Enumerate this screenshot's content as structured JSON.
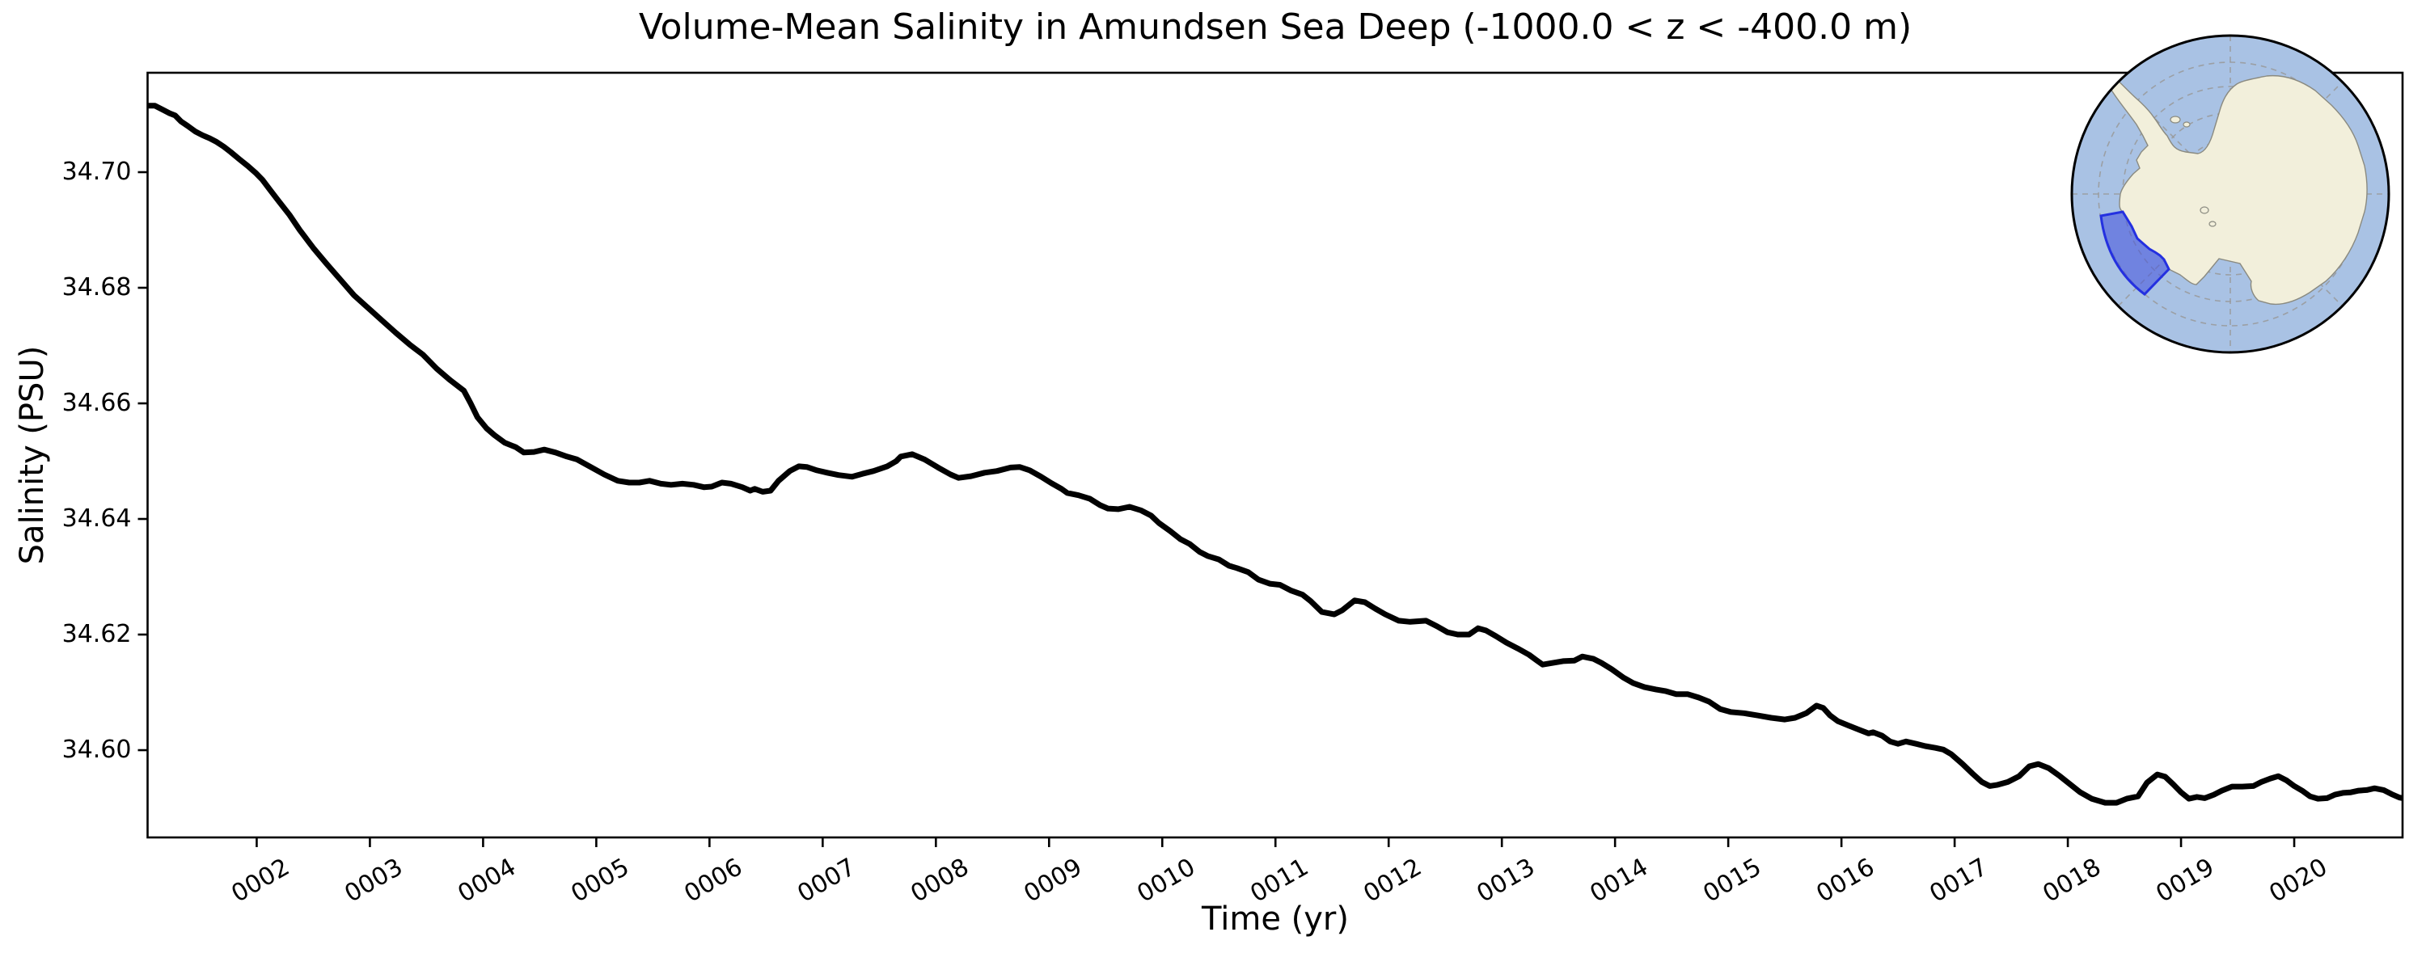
{
  "figure": {
    "title": "Volume-Mean Salinity in Amundsen Sea Deep (-1000.0 < z < -400.0 m)",
    "xlabel": "Time (yr)",
    "ylabel": "Salinity (PSU)"
  },
  "chart_data": {
    "type": "line",
    "title": "Volume-Mean Salinity in Amundsen Sea Deep (-1000.0 < z < -400.0 m)",
    "xlabel": "Time (yr)",
    "ylabel": "Salinity (PSU)",
    "xlim": [
      1.036,
      20.957
    ],
    "ylim": [
      34.5849,
      34.7172
    ],
    "grid": false,
    "line_color": "#000000",
    "line_width": 7,
    "x_ticks": {
      "values": [
        2,
        3,
        4,
        5,
        6,
        7,
        8,
        9,
        10,
        11,
        12,
        13,
        14,
        15,
        16,
        17,
        18,
        19,
        20
      ],
      "labels": [
        "0002",
        "0003",
        "0004",
        "0005",
        "0006",
        "0007",
        "0008",
        "0009",
        "0010",
        "0011",
        "0012",
        "0013",
        "0014",
        "0015",
        "0016",
        "0017",
        "0018",
        "0019",
        "0020"
      ],
      "rotation_deg": 30
    },
    "y_ticks": {
      "values": [
        34.6,
        34.62,
        34.64,
        34.66,
        34.68,
        34.7
      ],
      "labels": [
        "34.60",
        "34.62",
        "34.64",
        "34.66",
        "34.68",
        "34.70"
      ]
    },
    "series": [
      {
        "name": "volume-mean-salinity",
        "x": [
          1.04,
          1.1,
          1.17,
          1.23,
          1.28,
          1.33,
          1.39,
          1.46,
          1.52,
          1.58,
          1.64,
          1.71,
          1.77,
          1.85,
          1.92,
          1.99,
          2.05,
          2.12,
          2.19,
          2.29,
          2.38,
          2.5,
          2.62,
          2.74,
          2.86,
          2.99,
          3.11,
          3.23,
          3.35,
          3.47,
          3.59,
          3.71,
          3.83,
          3.89,
          3.95,
          4.03,
          4.1,
          4.19,
          4.29,
          4.36,
          4.45,
          4.54,
          4.64,
          4.74,
          4.83,
          4.95,
          5.07,
          5.19,
          5.29,
          5.38,
          5.47,
          5.57,
          5.66,
          5.76,
          5.86,
          5.95,
          6.02,
          6.11,
          6.19,
          6.29,
          6.36,
          6.4,
          6.47,
          6.54,
          6.61,
          6.71,
          6.79,
          6.86,
          6.95,
          7.04,
          7.14,
          7.26,
          7.35,
          7.45,
          7.57,
          7.65,
          7.69,
          7.79,
          7.9,
          8.02,
          8.13,
          8.2,
          8.31,
          8.43,
          8.54,
          8.66,
          8.74,
          8.83,
          8.93,
          9.02,
          9.11,
          9.16,
          9.26,
          9.36,
          9.45,
          9.52,
          9.61,
          9.71,
          9.81,
          9.9,
          9.97,
          10.07,
          10.16,
          10.24,
          10.33,
          10.4,
          10.5,
          10.59,
          10.66,
          10.76,
          10.85,
          10.95,
          11.04,
          11.14,
          11.24,
          11.31,
          11.41,
          11.52,
          11.59,
          11.7,
          11.79,
          11.88,
          11.97,
          12.09,
          12.19,
          12.33,
          12.43,
          12.52,
          12.61,
          12.71,
          12.79,
          12.86,
          12.95,
          13.04,
          13.14,
          13.24,
          13.31,
          13.36,
          13.45,
          13.54,
          13.64,
          13.71,
          13.81,
          13.88,
          13.97,
          14.07,
          14.16,
          14.26,
          14.36,
          14.45,
          14.54,
          14.64,
          14.74,
          14.83,
          14.93,
          15.02,
          15.14,
          15.26,
          15.38,
          15.5,
          15.59,
          15.69,
          15.78,
          15.84,
          15.9,
          15.97,
          16.07,
          16.16,
          16.24,
          16.28,
          16.36,
          16.43,
          16.5,
          16.57,
          16.66,
          16.74,
          16.83,
          16.9,
          16.97,
          17.07,
          17.16,
          17.24,
          17.31,
          17.38,
          17.47,
          17.57,
          17.66,
          17.74,
          17.83,
          17.93,
          18.02,
          18.11,
          18.21,
          18.33,
          18.43,
          18.52,
          18.62,
          18.7,
          18.79,
          18.86,
          18.93,
          19.0,
          19.07,
          19.14,
          19.21,
          19.29,
          19.36,
          19.45,
          19.54,
          19.64,
          19.71,
          19.79,
          19.86,
          19.93,
          20.0,
          20.07,
          20.14,
          20.21,
          20.29,
          20.36,
          20.43,
          20.5,
          20.57,
          20.64,
          20.71,
          20.79,
          20.86,
          20.93,
          20.96
        ],
        "y": [
          34.7115,
          34.7115,
          34.7108,
          34.7102,
          34.7098,
          34.7088,
          34.708,
          34.707,
          34.7064,
          34.7059,
          34.7053,
          34.7044,
          34.7035,
          34.7022,
          34.7011,
          34.6999,
          34.6987,
          34.6969,
          34.6951,
          34.6926,
          34.69,
          34.6869,
          34.6841,
          34.6814,
          34.6787,
          34.6764,
          34.6743,
          34.6722,
          34.6702,
          34.6684,
          34.666,
          34.664,
          34.6622,
          34.66,
          34.6576,
          34.6557,
          34.6545,
          34.6532,
          34.6524,
          34.6515,
          34.6516,
          34.652,
          34.6515,
          34.6508,
          34.6503,
          34.649,
          34.6477,
          34.6466,
          34.6463,
          34.6463,
          34.6466,
          34.6461,
          34.6459,
          34.6461,
          34.6459,
          34.6455,
          34.6456,
          34.6463,
          34.6461,
          34.6455,
          34.6449,
          34.6452,
          34.6447,
          34.6449,
          34.6466,
          34.6483,
          34.6491,
          34.649,
          34.6484,
          34.648,
          34.6476,
          34.6473,
          34.6478,
          34.6483,
          34.6491,
          34.65,
          34.6508,
          34.6512,
          34.6503,
          34.6489,
          34.6477,
          34.6471,
          34.6474,
          34.648,
          34.6483,
          34.6489,
          34.649,
          34.6484,
          34.6473,
          34.6462,
          34.6452,
          34.6445,
          34.6441,
          34.6435,
          34.6424,
          34.6418,
          34.6417,
          34.6421,
          34.6415,
          34.6406,
          34.6393,
          34.6379,
          34.6365,
          34.6357,
          34.6343,
          34.6336,
          34.633,
          34.6319,
          34.6315,
          34.6308,
          34.6295,
          34.6288,
          34.6286,
          34.6276,
          34.6269,
          34.6258,
          34.6239,
          34.6235,
          34.6242,
          34.6259,
          34.6256,
          34.6245,
          34.6235,
          34.6224,
          34.6222,
          34.6224,
          34.6214,
          34.6204,
          34.62,
          34.62,
          34.6211,
          34.6207,
          34.6197,
          34.6186,
          34.6176,
          34.6165,
          34.6155,
          34.6148,
          34.6151,
          34.6154,
          34.6155,
          34.6162,
          34.6158,
          34.6151,
          34.614,
          34.6126,
          34.6116,
          34.6109,
          34.6105,
          34.6102,
          34.6097,
          34.6097,
          34.6091,
          34.6084,
          34.6071,
          34.6066,
          34.6064,
          34.606,
          34.6056,
          34.6053,
          34.6056,
          34.6064,
          34.6077,
          34.6073,
          34.606,
          34.605,
          34.6042,
          34.6035,
          34.6029,
          34.6031,
          34.6025,
          34.6015,
          34.6011,
          34.6015,
          34.6011,
          34.6007,
          34.6004,
          34.6001,
          34.5993,
          34.5976,
          34.5959,
          34.5945,
          34.5938,
          34.594,
          34.5945,
          34.5955,
          34.5972,
          34.5976,
          34.5969,
          34.5955,
          34.5941,
          34.5927,
          34.5916,
          34.5909,
          34.5909,
          34.5916,
          34.592,
          34.5944,
          34.5958,
          34.5954,
          34.5941,
          34.5927,
          34.5916,
          34.5919,
          34.5917,
          34.5923,
          34.593,
          34.5937,
          34.5937,
          34.5938,
          34.5945,
          34.5951,
          34.5955,
          34.5948,
          34.5938,
          34.593,
          34.592,
          34.5916,
          34.5917,
          34.5923,
          34.5926,
          34.5927,
          34.593,
          34.5931,
          34.5934,
          34.5931,
          34.5924,
          34.5918,
          34.5917
        ]
      }
    ],
    "inset_map": {
      "description": "South polar stereographic map of Antarctica with the Amundsen Sea region highlighted",
      "ocean_color": "#a9c2e4",
      "land_color": "#f2efdb",
      "coast_color": "#8a8a80",
      "grid_color": "#999999",
      "region_fill": "#4150dc",
      "region_fill_opacity": 0.55,
      "region_edge": "#2430e0",
      "circle_edge": "#000000"
    }
  }
}
